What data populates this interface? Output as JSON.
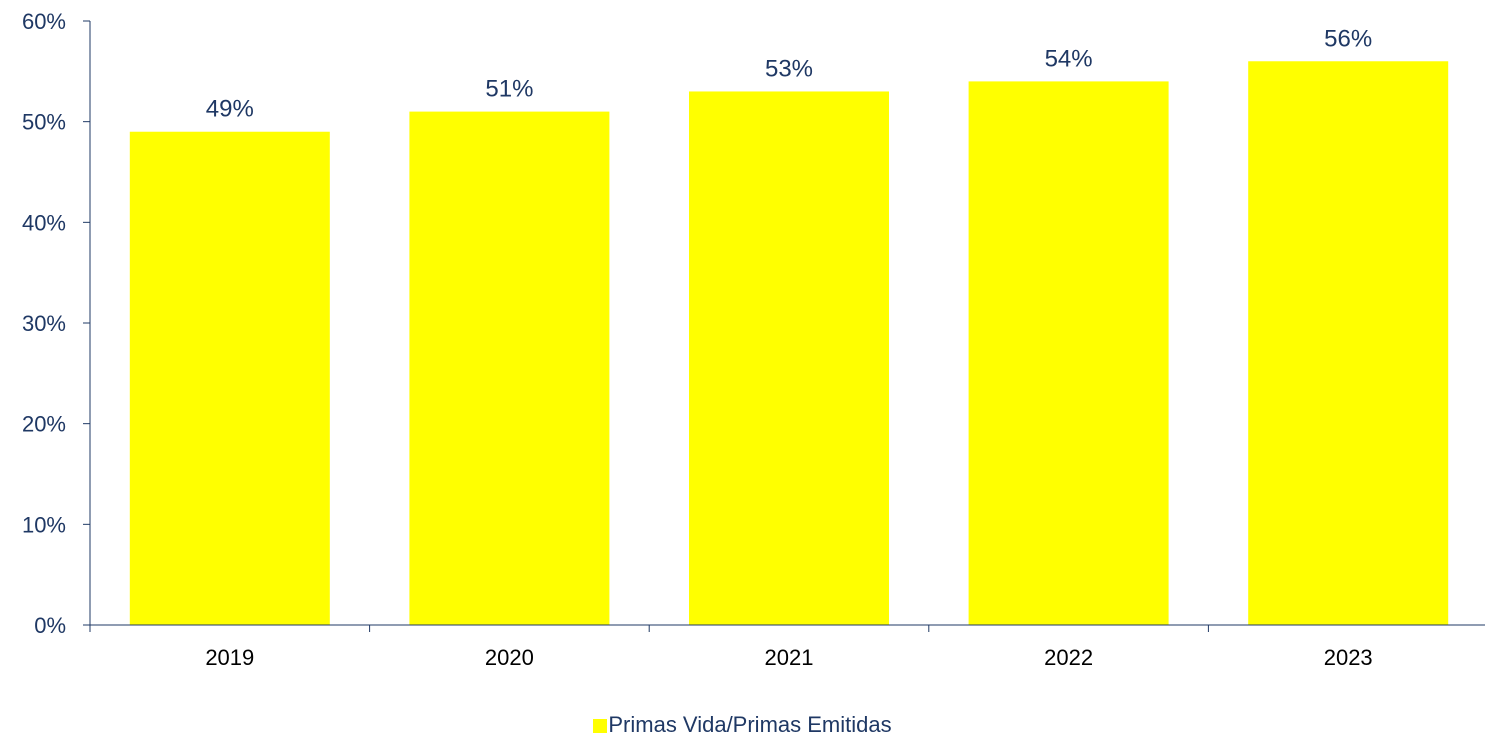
{
  "chart_data": {
    "type": "bar",
    "categories": [
      "2019",
      "2020",
      "2021",
      "2022",
      "2023"
    ],
    "series": [
      {
        "name": "Primas Vida/Primas Emitidas",
        "values": [
          49,
          51,
          53,
          54,
          56
        ]
      }
    ],
    "data_labels": [
      "49%",
      "51%",
      "53%",
      "54%",
      "56%"
    ],
    "y_tick_labels": [
      "0%",
      "10%",
      "20%",
      "30%",
      "40%",
      "50%",
      "60%"
    ],
    "y_ticks": [
      0,
      10,
      20,
      30,
      40,
      50,
      60
    ],
    "ylim": [
      0,
      60
    ],
    "grid": false,
    "legend_position": "bottom",
    "colors": {
      "bar": "#FFFF00",
      "axis": "#1F3864",
      "label": "#1F3864"
    }
  }
}
